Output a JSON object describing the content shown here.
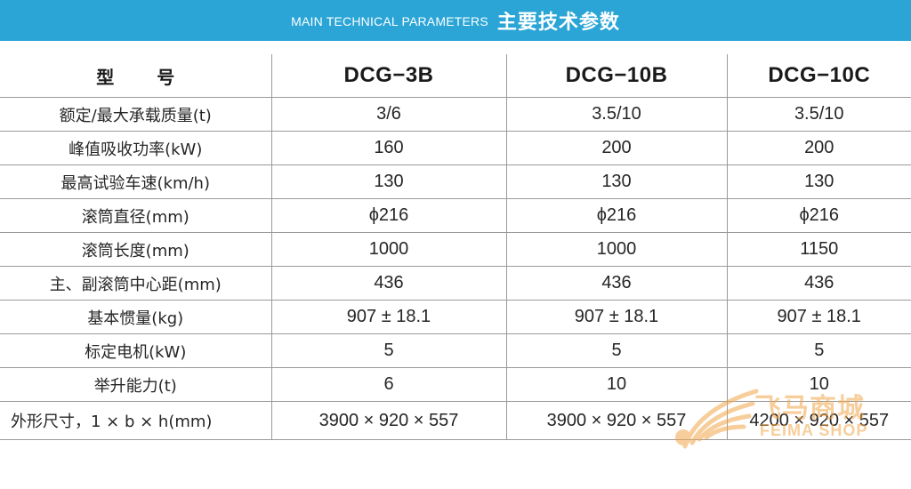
{
  "header": {
    "title_en": "MAIN TECHNICAL PARAMETERS",
    "title_zh": "主要技术参数"
  },
  "table": {
    "label_header": [
      "型",
      "号"
    ],
    "models": [
      "DCG−3B",
      "DCG−10B",
      "DCG−10C"
    ],
    "rows": [
      {
        "label": "额定/最大承载质量(t)",
        "values": [
          "3/6",
          "3.5/10",
          "3.5/10"
        ]
      },
      {
        "label": "峰值吸收功率(kW)",
        "values": [
          "160",
          "200",
          "200"
        ]
      },
      {
        "label": "最高试验车速(km/h)",
        "values": [
          "130",
          "130",
          "130"
        ]
      },
      {
        "label": "滚筒直径(mm)",
        "values": [
          "ϕ216",
          "ϕ216",
          "ϕ216"
        ]
      },
      {
        "label": "滚筒长度(mm)",
        "values": [
          "1000",
          "1000",
          "1150"
        ]
      },
      {
        "label": "主、副滚筒中心距(mm)",
        "values": [
          "436",
          "436",
          "436"
        ]
      },
      {
        "label": "基本惯量(kg)",
        "values": [
          "907 ± 18.1",
          "907 ± 18.1",
          "907 ± 18.1"
        ]
      },
      {
        "label": "标定电机(kW)",
        "values": [
          "5",
          "5",
          "5"
        ]
      },
      {
        "label": "举升能力(t)",
        "values": [
          "6",
          "10",
          "10"
        ]
      },
      {
        "label": "外形尺寸，1 × b × h(mm)",
        "values": [
          "3900 × 920 × 557",
          "3900 × 920 × 557",
          "4200 × 920 × 557"
        ]
      }
    ]
  },
  "watermark": {
    "text_zh": "飞马商城",
    "text_en": "FEIMA SHOP",
    "color": "#f2a74b"
  },
  "colors": {
    "header_bg": "#2aa5d6",
    "grid_line": "#9a9a9a"
  }
}
